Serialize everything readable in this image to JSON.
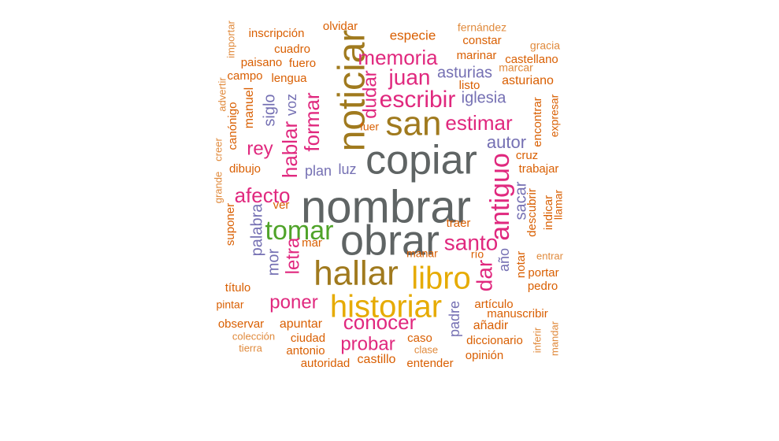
{
  "word_cloud": {
    "colors": {
      "gray": "#5f6464",
      "olive": "#a07a1e",
      "pink": "#e0287e",
      "purple": "#7570b3",
      "green": "#4fa329",
      "gold": "#e6ab02",
      "orange": "#d95f02",
      "light_orange": "#e08a3c"
    },
    "words": [
      {
        "text": "nombrar",
        "color": "gray"
      },
      {
        "text": "copiar",
        "color": "gray"
      },
      {
        "text": "obrar",
        "color": "gray"
      },
      {
        "text": "noticiar",
        "color": "olive"
      },
      {
        "text": "san",
        "color": "olive"
      },
      {
        "text": "hallar",
        "color": "olive"
      },
      {
        "text": "historiar",
        "color": "gold"
      },
      {
        "text": "libro",
        "color": "gold"
      },
      {
        "text": "tomar",
        "color": "green"
      },
      {
        "text": "antiguo",
        "color": "pink"
      },
      {
        "text": "escribir",
        "color": "pink"
      },
      {
        "text": "memoria",
        "color": "pink"
      },
      {
        "text": "juan",
        "color": "pink"
      },
      {
        "text": "estimar",
        "color": "pink"
      },
      {
        "text": "santo",
        "color": "pink"
      },
      {
        "text": "dar",
        "color": "pink"
      },
      {
        "text": "conocer",
        "color": "pink"
      },
      {
        "text": "probar",
        "color": "pink"
      },
      {
        "text": "poner",
        "color": "pink"
      },
      {
        "text": "afecto",
        "color": "pink"
      },
      {
        "text": "rey",
        "color": "pink"
      },
      {
        "text": "formar",
        "color": "pink"
      },
      {
        "text": "hablar",
        "color": "pink"
      },
      {
        "text": "letra",
        "color": "pink"
      },
      {
        "text": "dudar",
        "color": "pink"
      },
      {
        "text": "asturias",
        "color": "purple"
      },
      {
        "text": "iglesia",
        "color": "purple"
      },
      {
        "text": "autor",
        "color": "purple"
      },
      {
        "text": "sacar",
        "color": "purple"
      },
      {
        "text": "palabra",
        "color": "purple"
      },
      {
        "text": "mor",
        "color": "purple"
      },
      {
        "text": "siglo",
        "color": "purple"
      },
      {
        "text": "voz",
        "color": "purple"
      },
      {
        "text": "plan",
        "color": "purple"
      },
      {
        "text": "luz",
        "color": "purple"
      },
      {
        "text": "año",
        "color": "purple"
      },
      {
        "text": "padre",
        "color": "purple"
      },
      {
        "text": "olvidar",
        "color": "orange"
      },
      {
        "text": "inscripción",
        "color": "orange"
      },
      {
        "text": "especie",
        "color": "orange"
      },
      {
        "text": "fernández",
        "color": "light_orange"
      },
      {
        "text": "constar",
        "color": "orange"
      },
      {
        "text": "gracia",
        "color": "light_orange"
      },
      {
        "text": "marinar",
        "color": "orange"
      },
      {
        "text": "castellano",
        "color": "orange"
      },
      {
        "text": "marcar",
        "color": "light_orange"
      },
      {
        "text": "asturiano",
        "color": "orange"
      },
      {
        "text": "listo",
        "color": "orange"
      },
      {
        "text": "cuadro",
        "color": "orange"
      },
      {
        "text": "paisano",
        "color": "orange"
      },
      {
        "text": "fuero",
        "color": "orange"
      },
      {
        "text": "importar",
        "color": "light_orange"
      },
      {
        "text": "campo",
        "color": "orange"
      },
      {
        "text": "lengua",
        "color": "orange"
      },
      {
        "text": "advertir",
        "color": "light_orange"
      },
      {
        "text": "manuel",
        "color": "orange"
      },
      {
        "text": "canónigo",
        "color": "orange"
      },
      {
        "text": "creer",
        "color": "light_orange"
      },
      {
        "text": "grande",
        "color": "light_orange"
      },
      {
        "text": "dibujo",
        "color": "orange"
      },
      {
        "text": "suponer",
        "color": "orange"
      },
      {
        "text": "ver",
        "color": "orange"
      },
      {
        "text": "mar",
        "color": "orange"
      },
      {
        "text": "fuer",
        "color": "orange"
      },
      {
        "text": "encontrar",
        "color": "orange"
      },
      {
        "text": "expresar",
        "color": "orange"
      },
      {
        "text": "cruz",
        "color": "orange"
      },
      {
        "text": "trabajar",
        "color": "orange"
      },
      {
        "text": "descubrir",
        "color": "orange"
      },
      {
        "text": "indicar",
        "color": "orange"
      },
      {
        "text": "llamar",
        "color": "orange"
      },
      {
        "text": "traer",
        "color": "orange"
      },
      {
        "text": "manar",
        "color": "orange"
      },
      {
        "text": "río",
        "color": "orange"
      },
      {
        "text": "entrar",
        "color": "light_orange"
      },
      {
        "text": "notar",
        "color": "orange"
      },
      {
        "text": "portar",
        "color": "orange"
      },
      {
        "text": "pedro",
        "color": "orange"
      },
      {
        "text": "título",
        "color": "orange"
      },
      {
        "text": "pintar",
        "color": "orange"
      },
      {
        "text": "observar",
        "color": "orange"
      },
      {
        "text": "apuntar",
        "color": "orange"
      },
      {
        "text": "artículo",
        "color": "orange"
      },
      {
        "text": "manuscribir",
        "color": "orange"
      },
      {
        "text": "añadir",
        "color": "orange"
      },
      {
        "text": "colección",
        "color": "light_orange"
      },
      {
        "text": "tierra",
        "color": "light_orange"
      },
      {
        "text": "ciudad",
        "color": "orange"
      },
      {
        "text": "antonio",
        "color": "orange"
      },
      {
        "text": "caso",
        "color": "orange"
      },
      {
        "text": "diccionario",
        "color": "orange"
      },
      {
        "text": "clase",
        "color": "light_orange"
      },
      {
        "text": "opinión",
        "color": "orange"
      },
      {
        "text": "inferir",
        "color": "light_orange"
      },
      {
        "text": "mandar",
        "color": "light_orange"
      },
      {
        "text": "autoridad",
        "color": "orange"
      },
      {
        "text": "castillo",
        "color": "orange"
      },
      {
        "text": "entender",
        "color": "orange"
      }
    ]
  }
}
